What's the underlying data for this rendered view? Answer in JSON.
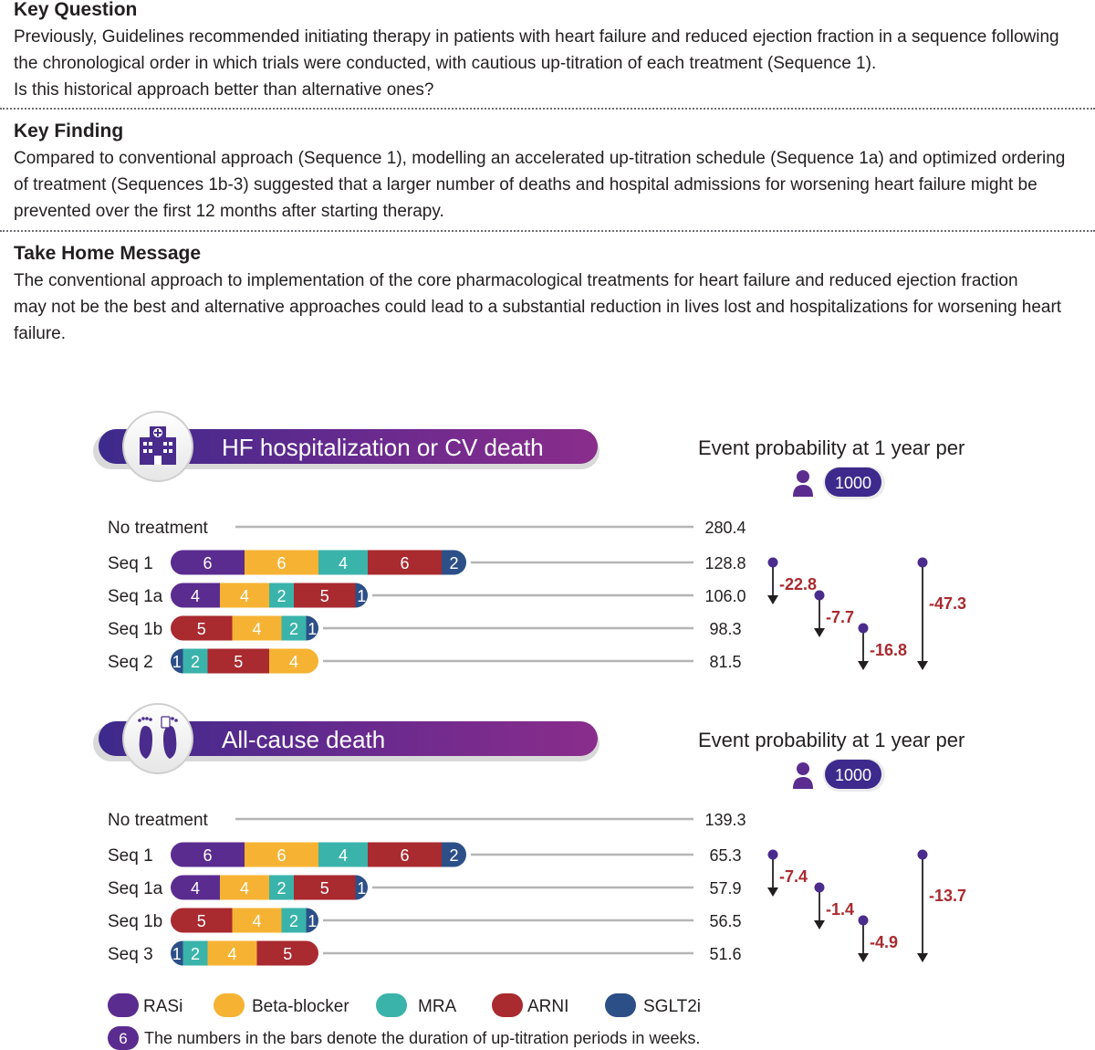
{
  "text": {
    "key_question": {
      "heading": "Key Question",
      "body_lines": [
        "Previously, Guidelines recommended initiating therapy in patients with heart failure and reduced ejection fraction in a sequence following",
        "the chronological order in which trials were conducted, with cautious up-titration of each treatment (Sequence 1).",
        "Is this historical approach better than alternative ones?"
      ]
    },
    "key_finding": {
      "heading": "Key Finding",
      "body_lines": [
        "Compared to conventional approach (Sequence 1), modelling an accelerated up-titration schedule (Sequence 1a) and optimized ordering",
        "of treatment (Sequences 1b-3) suggested that a larger number of deaths and hospital admissions for worsening heart failure might be",
        "prevented over the first 12 months after starting therapy."
      ]
    },
    "take_home": {
      "heading": "Take Home Message",
      "body_lines": [
        "The conventional approach to implementation of the core pharmacological treatments for heart failure and reduced ejection fraction",
        "may not be the best and alternative approaches could lead to a substantial reduction in lives lost and hospitalizations for worsening heart",
        "failure."
      ]
    }
  },
  "colors": {
    "RASi": "#5b2c8f",
    "Beta-blocker": "#f6b333",
    "MRA": "#3ab3ab",
    "ARNI": "#a92a2f",
    "SGLT2i": "#2c4f87",
    "delta_text": "#a92a2f",
    "banner_dark": "#3d2a8c",
    "banner_light": "#8a2d8c",
    "line_gray": "#b5b5b5"
  },
  "legend": {
    "items": [
      "RASi",
      "Beta-blocker",
      "MRA",
      "ARNI",
      "SGLT2i"
    ],
    "note_badge": "6",
    "note": "The numbers in the bars denote the duration of up-titration periods in weeks."
  },
  "chart_data": [
    {
      "type": "bar",
      "title": "HF hospitalization or CV death",
      "value_header": "Event probability at 1 year per",
      "per_badge": "1000",
      "person_icon": "person-icon",
      "banner_icon": "hospital-icon",
      "rows": [
        {
          "label": "No treatment",
          "segments": [],
          "value": "280.4"
        },
        {
          "label": "Seq 1",
          "segments": [
            {
              "drug": "RASi",
              "weeks": 6
            },
            {
              "drug": "Beta-blocker",
              "weeks": 6
            },
            {
              "drug": "MRA",
              "weeks": 4
            },
            {
              "drug": "ARNI",
              "weeks": 6
            },
            {
              "drug": "SGLT2i",
              "weeks": 2
            }
          ],
          "value": "128.8"
        },
        {
          "label": "Seq 1a",
          "segments": [
            {
              "drug": "RASi",
              "weeks": 4
            },
            {
              "drug": "Beta-blocker",
              "weeks": 4
            },
            {
              "drug": "MRA",
              "weeks": 2
            },
            {
              "drug": "ARNI",
              "weeks": 5
            },
            {
              "drug": "SGLT2i",
              "weeks": 1
            }
          ],
          "value": "106.0"
        },
        {
          "label": "Seq 1b",
          "segments": [
            {
              "drug": "ARNI",
              "weeks": 5
            },
            {
              "drug": "Beta-blocker",
              "weeks": 4
            },
            {
              "drug": "MRA",
              "weeks": 2
            },
            {
              "drug": "SGLT2i",
              "weeks": 1
            }
          ],
          "value": "98.3"
        },
        {
          "label": "Seq 2",
          "segments": [
            {
              "drug": "SGLT2i",
              "weeks": 1
            },
            {
              "drug": "MRA",
              "weeks": 2
            },
            {
              "drug": "ARNI",
              "weeks": 5
            },
            {
              "drug": "Beta-blocker",
              "weeks": 4
            }
          ],
          "value": "81.5"
        }
      ],
      "differences": [
        {
          "from": "Seq 1",
          "to": "Seq 1a",
          "value": "-22.8"
        },
        {
          "from": "Seq 1a",
          "to": "Seq 1b",
          "value": "-7.7"
        },
        {
          "from": "Seq 1b",
          "to": "Seq 2",
          "value": "-16.8"
        },
        {
          "from": "Seq 1",
          "to": "Seq 2",
          "value": "-47.3"
        }
      ]
    },
    {
      "type": "bar",
      "title": "All-cause death",
      "value_header": "Event probability at 1 year per",
      "per_badge": "1000",
      "person_icon": "person-icon",
      "banner_icon": "footprints-icon",
      "rows": [
        {
          "label": "No treatment",
          "segments": [],
          "value": "139.3"
        },
        {
          "label": "Seq 1",
          "segments": [
            {
              "drug": "RASi",
              "weeks": 6
            },
            {
              "drug": "Beta-blocker",
              "weeks": 6
            },
            {
              "drug": "MRA",
              "weeks": 4
            },
            {
              "drug": "ARNI",
              "weeks": 6
            },
            {
              "drug": "SGLT2i",
              "weeks": 2
            }
          ],
          "value": "65.3"
        },
        {
          "label": "Seq 1a",
          "segments": [
            {
              "drug": "RASi",
              "weeks": 4
            },
            {
              "drug": "Beta-blocker",
              "weeks": 4
            },
            {
              "drug": "MRA",
              "weeks": 2
            },
            {
              "drug": "ARNI",
              "weeks": 5
            },
            {
              "drug": "SGLT2i",
              "weeks": 1
            }
          ],
          "value": "57.9"
        },
        {
          "label": "Seq 1b",
          "segments": [
            {
              "drug": "ARNI",
              "weeks": 5
            },
            {
              "drug": "Beta-blocker",
              "weeks": 4
            },
            {
              "drug": "MRA",
              "weeks": 2
            },
            {
              "drug": "SGLT2i",
              "weeks": 1
            }
          ],
          "value": "56.5"
        },
        {
          "label": "Seq 3",
          "segments": [
            {
              "drug": "SGLT2i",
              "weeks": 1
            },
            {
              "drug": "MRA",
              "weeks": 2
            },
            {
              "drug": "Beta-blocker",
              "weeks": 4
            },
            {
              "drug": "ARNI",
              "weeks": 5
            }
          ],
          "value": "51.6"
        }
      ],
      "differences": [
        {
          "from": "Seq 1",
          "to": "Seq 1a",
          "value": "-7.4"
        },
        {
          "from": "Seq 1a",
          "to": "Seq 1b",
          "value": "-1.4"
        },
        {
          "from": "Seq 1b",
          "to": "Seq 3",
          "value": "-4.9"
        },
        {
          "from": "Seq 1",
          "to": "Seq 3",
          "value": "-13.7"
        }
      ]
    }
  ]
}
